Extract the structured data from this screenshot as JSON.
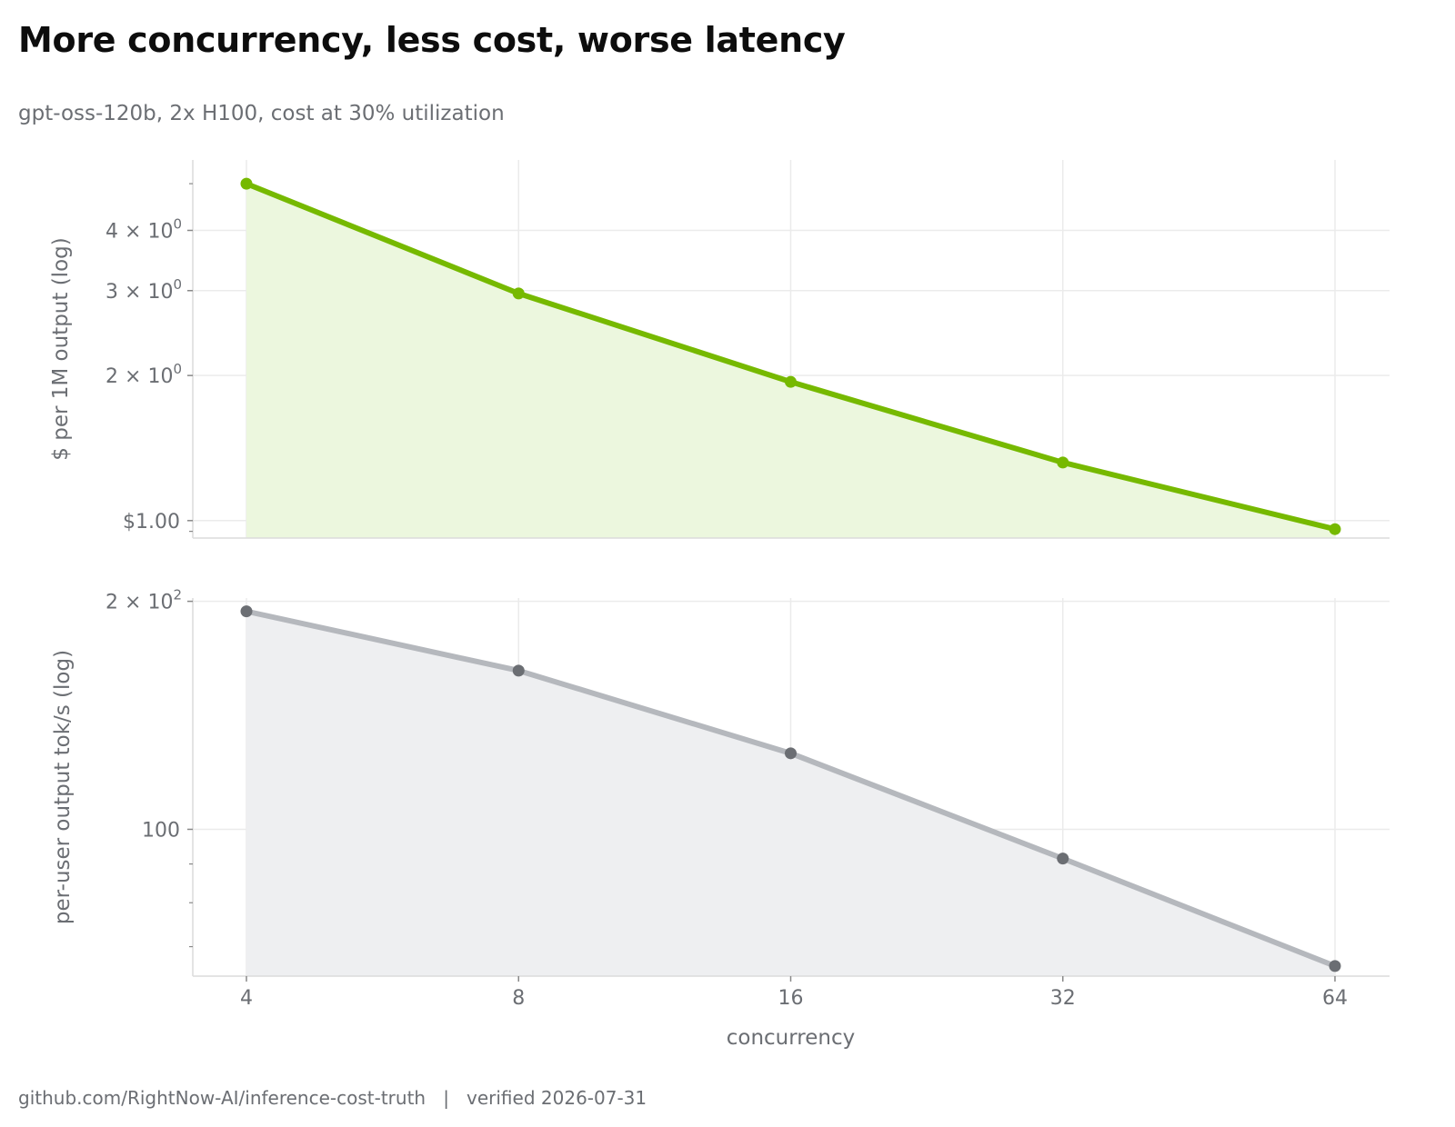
{
  "title": "More concurrency, less cost, worse latency",
  "subtitle": "gpt-oss-120b, 2x H100, cost at 30% utilization",
  "footer": {
    "source": "github.com/RightNow-AI/inference-cost-truth",
    "separator": "|",
    "verified": "verified 2026-07-31"
  },
  "colors": {
    "cost_line": "#76b900",
    "cost_fill": "#ecf7de",
    "latency_line": "#b5b8bd",
    "latency_marker": "#6b6e73",
    "latency_fill": "#eeeff1",
    "grid": "#ebebeb",
    "axis": "#dcdcdc"
  },
  "chart_data": [
    {
      "type": "area",
      "x": [
        4,
        8,
        16,
        32,
        64
      ],
      "xscale": "log2",
      "xticks": [
        "4",
        "8",
        "16",
        "32",
        "64"
      ],
      "yscale": "log",
      "ylabel": "$ per 1M output (log)",
      "ylim": [
        0.92,
        5.6
      ],
      "yticks": [
        {
          "value": 4,
          "base": "4 × 10",
          "exp": "0"
        },
        {
          "value": 3,
          "base": "3 × 10",
          "exp": "0"
        },
        {
          "value": 2,
          "base": "2 × 10",
          "exp": "0"
        },
        {
          "value": 1,
          "base": "$1.00",
          "exp": ""
        }
      ],
      "minor_ticks": [
        0.95,
        5
      ],
      "series": [
        {
          "values": [
            5.0,
            2.96,
            1.94,
            1.32,
            0.96
          ]
        }
      ]
    },
    {
      "type": "area",
      "x": [
        4,
        8,
        16,
        32,
        64
      ],
      "xscale": "log2",
      "xticks": [
        "4",
        "8",
        "16",
        "32",
        "64"
      ],
      "xlabel": "concurrency",
      "yscale": "log",
      "ylabel": "per-user output tok/s (log)",
      "ylim": [
        64,
        202
      ],
      "yticks": [
        {
          "value": 200,
          "base": "2 × 10",
          "exp": "2"
        },
        {
          "value": 100,
          "base": "100",
          "exp": ""
        }
      ],
      "minor_ticks": [
        70,
        80,
        90
      ],
      "series": [
        {
          "values": [
            194,
            162,
            126,
            91.5,
            66
          ]
        }
      ]
    }
  ]
}
